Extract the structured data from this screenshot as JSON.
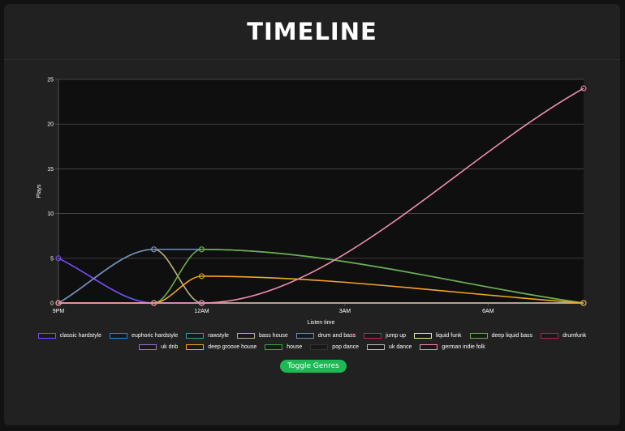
{
  "page": {
    "title": "TIMELINE",
    "toggle_label": "Toggle Genres"
  },
  "colors": {
    "accent": "#1db954",
    "card": "#212121",
    "plot": "#0f0f0f"
  },
  "chart_data": {
    "type": "line",
    "title": "",
    "xlabel": "Listen time",
    "ylabel": "Plays",
    "ylim": [
      0,
      25
    ],
    "yticks": [
      0,
      5,
      10,
      15,
      20,
      25
    ],
    "x_tick_labels": [
      "9PM",
      "12AM",
      "3AM",
      "6AM"
    ],
    "x_tick_hours": [
      21,
      24,
      27,
      30
    ],
    "x_hours": [
      21,
      23,
      24,
      32
    ],
    "grid": true,
    "legend_position": "bottom",
    "series": [
      {
        "name": "classic hardstyle",
        "color": "#7c4dff",
        "values": [
          5,
          0,
          0,
          0
        ]
      },
      {
        "name": "euphoric hardstyle",
        "color": "#1e88e5",
        "values": [
          0,
          0,
          0,
          0
        ]
      },
      {
        "name": "rawstyle",
        "color": "#26a69a",
        "values": [
          0,
          0,
          0,
          0
        ]
      },
      {
        "name": "bass house",
        "color": "#c2b280",
        "values": [
          0,
          6,
          0,
          0
        ]
      },
      {
        "name": "drum and bass",
        "color": "#6c8ebf",
        "values": [
          0,
          6,
          6,
          0
        ]
      },
      {
        "name": "jump up",
        "color": "#d81b60",
        "values": [
          0,
          0,
          0,
          0
        ]
      },
      {
        "name": "liquid funk",
        "color": "#e6ee9c",
        "values": [
          0,
          0,
          0,
          0
        ]
      },
      {
        "name": "deep liquid bass",
        "color": "#6ab04c",
        "values": [
          0,
          0,
          6,
          0
        ]
      },
      {
        "name": "drumfunk",
        "color": "#c2185b",
        "values": [
          0,
          0,
          0,
          0
        ]
      },
      {
        "name": "uk dnb",
        "color": "#9575cd",
        "values": [
          0,
          0,
          0,
          0
        ]
      },
      {
        "name": "deep groove house",
        "color": "#f5a623",
        "values": [
          0,
          0,
          3,
          0
        ]
      },
      {
        "name": "house",
        "color": "#43a047",
        "values": [
          0,
          0,
          0,
          0
        ]
      },
      {
        "name": "pop dance",
        "color": "#333333",
        "values": [
          0,
          0,
          0,
          0
        ]
      },
      {
        "name": "uk dance",
        "color": "#bdbdbd",
        "values": [
          0,
          0,
          0,
          0
        ]
      },
      {
        "name": "german indie folk",
        "color": "#f48fb1",
        "values": [
          0,
          0,
          0,
          24
        ]
      }
    ]
  }
}
